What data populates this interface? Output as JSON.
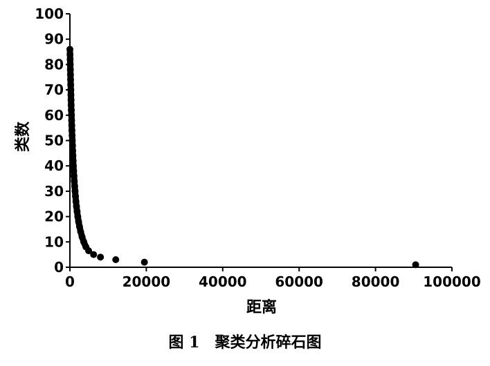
{
  "chart_data": {
    "type": "scatter",
    "xlabel": "距离",
    "ylabel": "类数",
    "xlim": [
      0,
      100000
    ],
    "ylim": [
      0,
      100
    ],
    "x_ticks": [
      "0",
      "20000",
      "40000",
      "60000",
      "80000",
      "100000"
    ],
    "y_ticks": [
      "0",
      "10",
      "20",
      "30",
      "40",
      "50",
      "60",
      "70",
      "80",
      "90",
      "100"
    ],
    "series": [
      {
        "color": "#000000",
        "points": [
          [
            0,
            86
          ],
          [
            30,
            84
          ],
          [
            60,
            82
          ],
          [
            90,
            80
          ],
          [
            120,
            78
          ],
          [
            150,
            76
          ],
          [
            180,
            74
          ],
          [
            210,
            72
          ],
          [
            240,
            70
          ],
          [
            270,
            68
          ],
          [
            300,
            66
          ],
          [
            330,
            64
          ],
          [
            370,
            62
          ],
          [
            410,
            60
          ],
          [
            450,
            58
          ],
          [
            490,
            56
          ],
          [
            530,
            54
          ],
          [
            580,
            52
          ],
          [
            630,
            50
          ],
          [
            680,
            48
          ],
          [
            730,
            46
          ],
          [
            790,
            44
          ],
          [
            850,
            42
          ],
          [
            920,
            40
          ],
          [
            990,
            38
          ],
          [
            1070,
            36
          ],
          [
            1150,
            34
          ],
          [
            1250,
            32
          ],
          [
            1350,
            30
          ],
          [
            1460,
            28
          ],
          [
            1580,
            26
          ],
          [
            1720,
            24
          ],
          [
            1880,
            22
          ],
          [
            2060,
            20
          ],
          [
            2270,
            18
          ],
          [
            2520,
            16
          ],
          [
            2820,
            14
          ],
          [
            3180,
            12
          ],
          [
            3620,
            10
          ],
          [
            4200,
            8
          ],
          [
            4900,
            6.5
          ],
          [
            6200,
            5
          ],
          [
            8000,
            4
          ],
          [
            12000,
            3
          ],
          [
            19500,
            2
          ],
          [
            90500,
            1
          ]
        ]
      }
    ]
  },
  "caption": {
    "figure_number": "图 1",
    "title": "聚类分析碎石图"
  }
}
